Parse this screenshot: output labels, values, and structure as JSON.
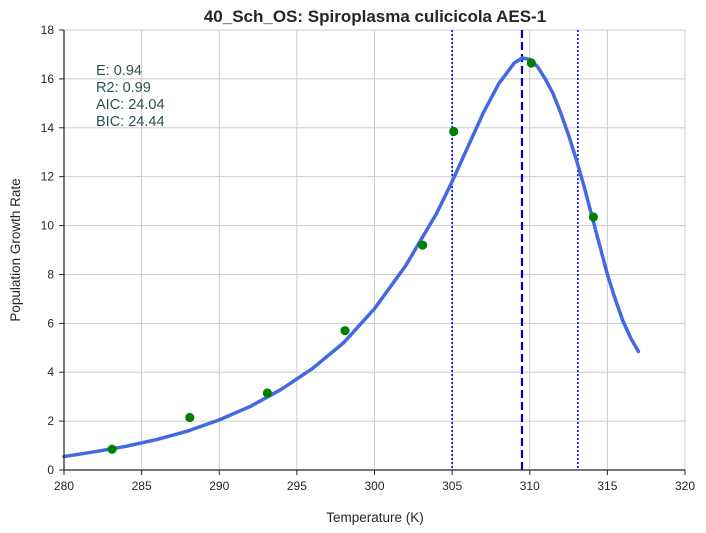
{
  "chart_data": {
    "type": "line",
    "title": "40_Sch_OS: Spiroplasma culicicola AES-1",
    "xlabel": "Temperature (K)",
    "ylabel": "Population Growth Rate",
    "xlim": [
      280,
      320
    ],
    "ylim": [
      0,
      18
    ],
    "xticks": [
      "280",
      "285",
      "290",
      "295",
      "300",
      "305",
      "310",
      "315",
      "320"
    ],
    "yticks": [
      "0",
      "2",
      "4",
      "6",
      "8",
      "10",
      "12",
      "14",
      "16",
      "18"
    ],
    "grid": true,
    "annotations": [
      "E:  0.94",
      "R2:  0.99",
      "AIC: 24.04",
      "BIC: 24.44"
    ],
    "series": [
      {
        "kind": "scatter",
        "color": "#008000",
        "x": [
          283.1,
          288.1,
          293.1,
          298.1,
          303.1,
          305.1,
          310.1,
          314.1
        ],
        "y": [
          0.85,
          2.15,
          3.15,
          5.7,
          9.2,
          13.85,
          16.65,
          10.35
        ]
      },
      {
        "kind": "line",
        "color": "#4169e1",
        "x": [
          280,
          282,
          284,
          286,
          288,
          290,
          292,
          294,
          296,
          298,
          300,
          302,
          304,
          305,
          306,
          307,
          308,
          309,
          309.5,
          310,
          310.5,
          311,
          311.5,
          312,
          312.5,
          313,
          313.5,
          314,
          314.5,
          315,
          315.5,
          316,
          316.5,
          317
        ],
        "y": [
          0.55,
          0.75,
          0.97,
          1.25,
          1.6,
          2.05,
          2.6,
          3.3,
          4.15,
          5.2,
          6.6,
          8.35,
          10.5,
          11.8,
          13.2,
          14.6,
          15.8,
          16.65,
          16.85,
          16.8,
          16.5,
          16.0,
          15.4,
          14.6,
          13.7,
          12.7,
          11.6,
          10.4,
          9.2,
          8.0,
          7.0,
          6.1,
          5.4,
          4.85
        ]
      }
    ],
    "vlines": [
      {
        "x": 309.5,
        "style": "dashed",
        "color": "#0000cd"
      },
      {
        "x": 305.0,
        "style": "dotted",
        "color": "#0000ff"
      },
      {
        "x": 313.1,
        "style": "dotted",
        "color": "#0000ff"
      }
    ]
  }
}
